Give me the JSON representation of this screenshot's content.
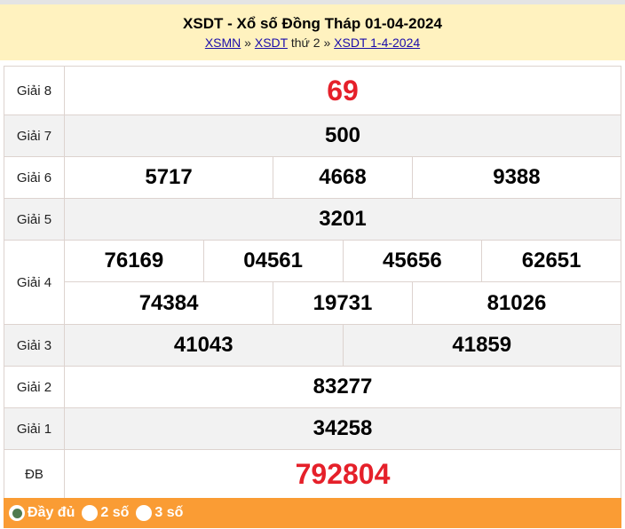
{
  "header": {
    "title": "XSDT - Xổ số Đồng Tháp 01-04-2024",
    "crumb1": "XSMN",
    "sep1": " » ",
    "crumb2": "XSDT",
    "mid": " thứ 2 » ",
    "crumb3": "XSDT 1-4-2024"
  },
  "rows": {
    "g8": {
      "label": "Giải 8",
      "values": [
        "69"
      ]
    },
    "g7": {
      "label": "Giải 7",
      "values": [
        "500"
      ]
    },
    "g6": {
      "label": "Giải 6",
      "values": [
        "5717",
        "4668",
        "9388"
      ]
    },
    "g5": {
      "label": "Giải 5",
      "values": [
        "3201"
      ]
    },
    "g4": {
      "label": "Giải 4",
      "values": [
        "76169",
        "04561",
        "45656",
        "62651",
        "74384",
        "19731",
        "81026"
      ]
    },
    "g3": {
      "label": "Giải 3",
      "values": [
        "41043",
        "41859"
      ]
    },
    "g2": {
      "label": "Giải 2",
      "values": [
        "83277"
      ]
    },
    "g1": {
      "label": "Giải 1",
      "values": [
        "34258"
      ]
    },
    "db": {
      "label": "ĐB",
      "values": [
        "792804"
      ]
    }
  },
  "footer": {
    "options": [
      {
        "label": "Đầy đủ",
        "selected": true
      },
      {
        "label": "2 số",
        "selected": false
      },
      {
        "label": "3 số",
        "selected": false
      }
    ]
  },
  "colors": {
    "header_bg": "#fff2bf",
    "footer_bg": "#fa9c34",
    "highlight": "#e5202a"
  }
}
